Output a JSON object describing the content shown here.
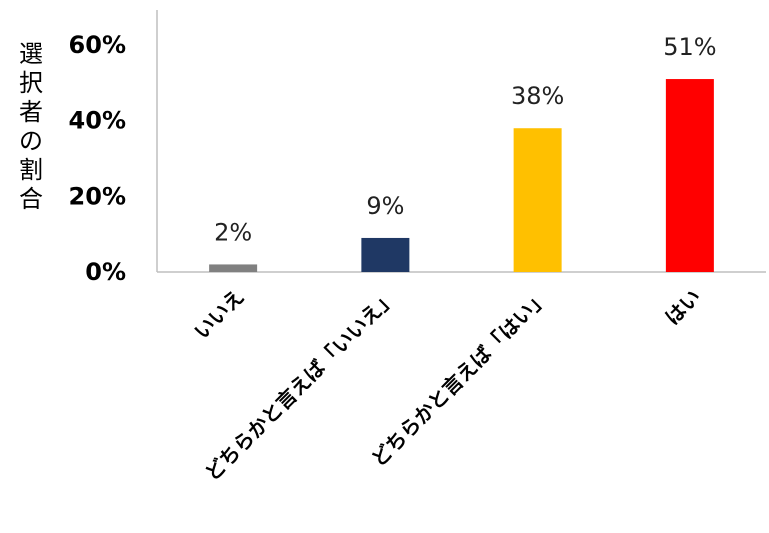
{
  "chart_data": {
    "type": "bar",
    "categories": [
      "いいえ",
      "どちらかと言えば「いいえ」",
      "どちらかと言えば「はい」",
      "はい"
    ],
    "values": [
      2,
      9,
      38,
      51
    ],
    "value_labels": [
      "2%",
      "9%",
      "38%",
      "51%"
    ],
    "colors": [
      "#808080",
      "#1f3864",
      "#ffc000",
      "#ff0000"
    ],
    "ylabel": "選択者の割合",
    "ylim": [
      0,
      60
    ],
    "yticks": [
      0,
      20,
      40,
      60
    ],
    "ytick_labels": [
      "0%",
      "20%",
      "40%",
      "60%"
    ],
    "grid": false,
    "legend": "none"
  }
}
